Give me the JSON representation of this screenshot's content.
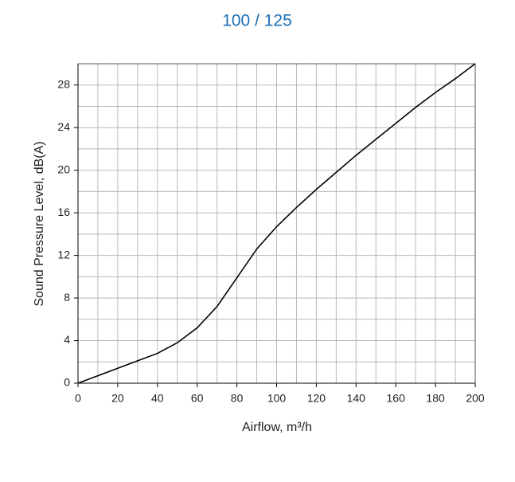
{
  "chart_data": {
    "type": "line",
    "title": "100 / 125",
    "x_label": "Airflow, m³/h",
    "y_label": "Sound Pressure Level, dB(A)",
    "x": [
      0,
      10,
      20,
      30,
      40,
      50,
      60,
      70,
      80,
      90,
      100,
      110,
      120,
      130,
      140,
      150,
      160,
      170,
      180,
      190,
      200
    ],
    "series": [
      {
        "color": "#000000",
        "values": [
          0,
          0.7,
          1.4,
          2.1,
          2.8,
          3.8,
          5.2,
          7.2,
          9.9,
          12.6,
          14.7,
          16.5,
          18.2,
          19.8,
          21.4,
          22.9,
          24.4,
          25.9,
          27.3,
          28.6,
          30
        ]
      }
    ],
    "xlim": [
      0,
      200
    ],
    "ylim": [
      0,
      30
    ],
    "xticks": [
      0,
      20,
      40,
      60,
      80,
      100,
      120,
      140,
      160,
      180,
      200
    ],
    "yticks": [
      0,
      4,
      8,
      12,
      16,
      20,
      24,
      28
    ],
    "grid": true
  }
}
